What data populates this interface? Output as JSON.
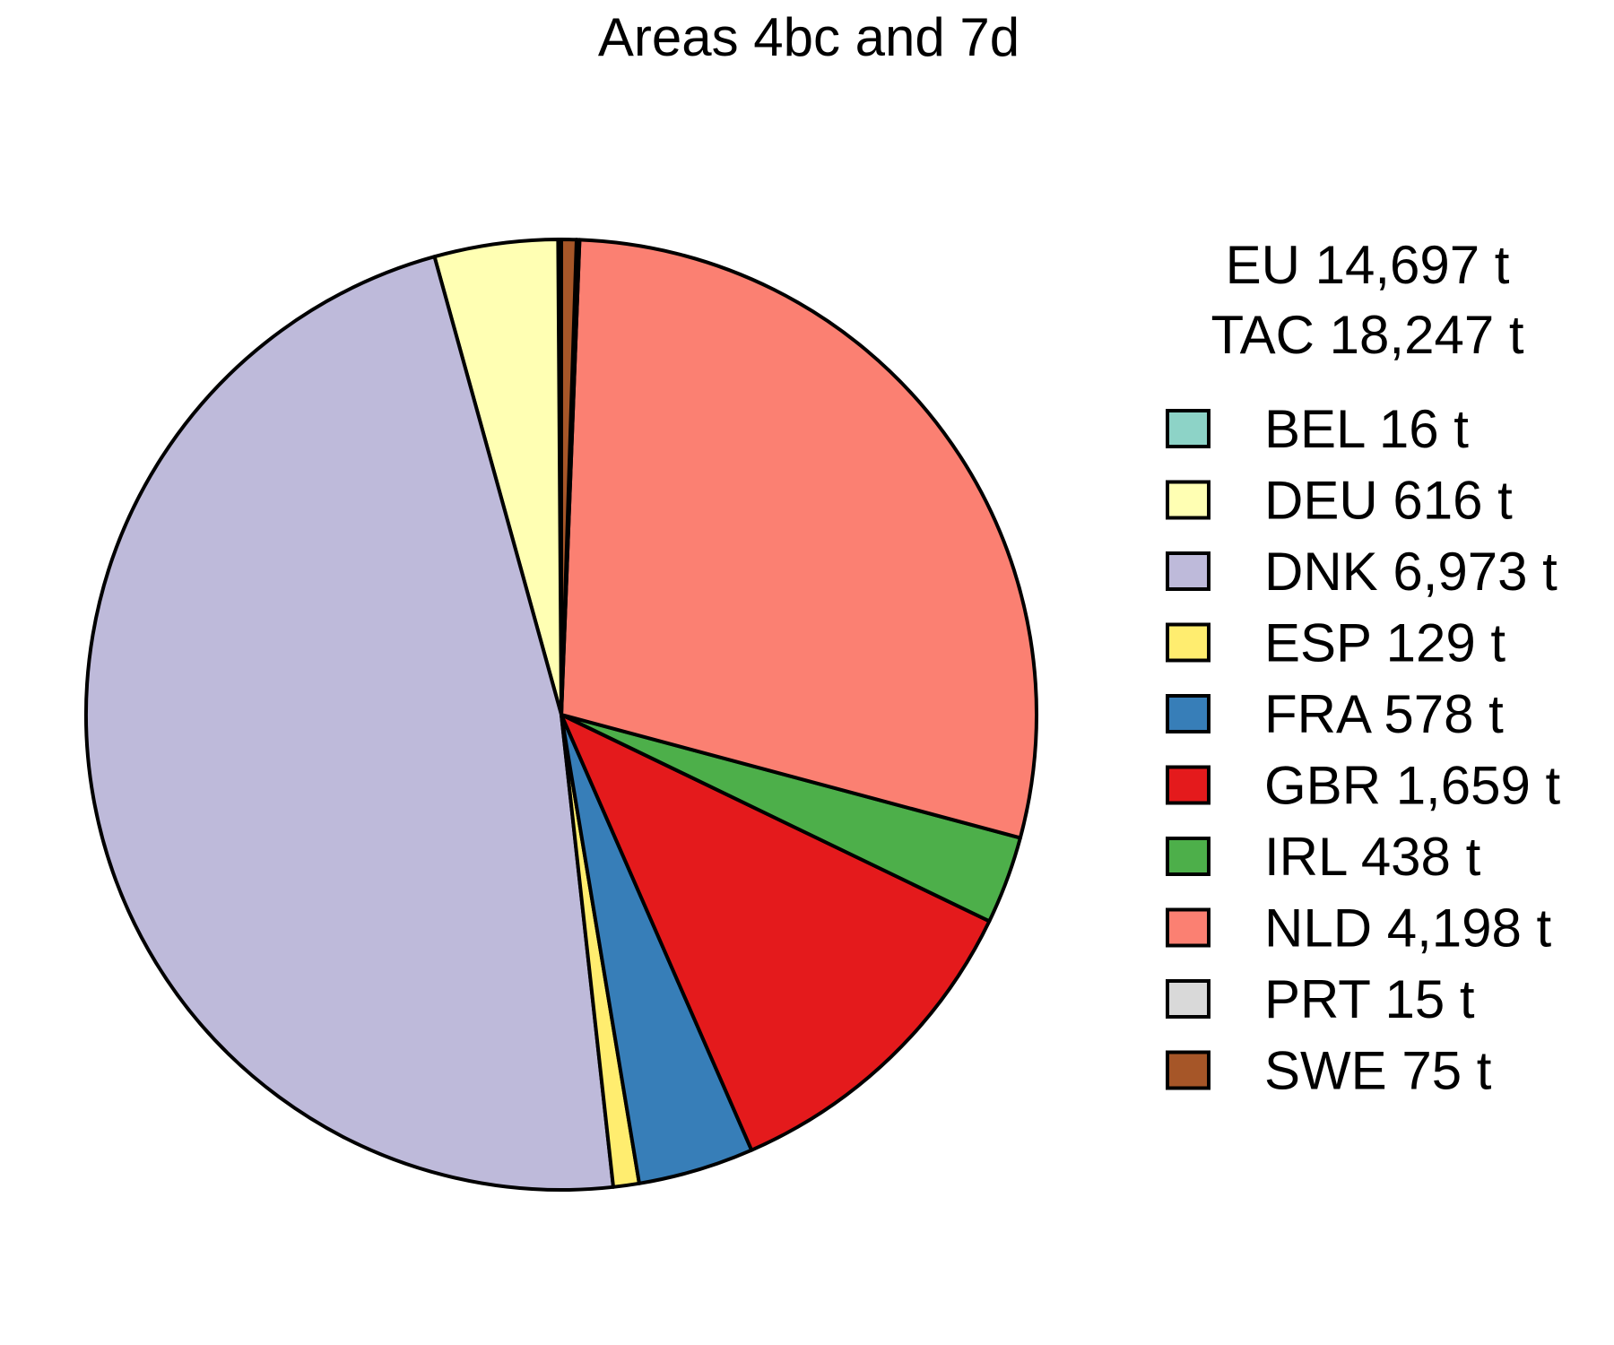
{
  "chart_data": {
    "type": "pie",
    "title": "Areas 4bc and 7d",
    "summary": [
      "EU 14,697 t",
      "TAC 18,247 t"
    ],
    "legend_position": "right",
    "slices": [
      {
        "code": "BEL",
        "value": 16,
        "label": "BEL 16 t",
        "color": "#8DD3C7"
      },
      {
        "code": "DEU",
        "value": 616,
        "label": "DEU 616 t",
        "color": "#FFFFB3"
      },
      {
        "code": "DNK",
        "value": 6973,
        "label": "DNK 6,973 t",
        "color": "#BEBADA"
      },
      {
        "code": "ESP",
        "value": 129,
        "label": "ESP 129 t",
        "color": "#FFED6F"
      },
      {
        "code": "FRA",
        "value": 578,
        "label": "FRA 578 t",
        "color": "#377EB8"
      },
      {
        "code": "GBR",
        "value": 1659,
        "label": "GBR 1,659 t",
        "color": "#E41A1C"
      },
      {
        "code": "IRL",
        "value": 438,
        "label": "IRL 438 t",
        "color": "#4DAF4A"
      },
      {
        "code": "NLD",
        "value": 4198,
        "label": "NLD 4,198 t",
        "color": "#FB8072"
      },
      {
        "code": "PRT",
        "value": 15,
        "label": "PRT 15 t",
        "color": "#D9D9D9"
      },
      {
        "code": "SWE",
        "value": 75,
        "label": "SWE 75 t",
        "color": "#A65628"
      }
    ]
  }
}
